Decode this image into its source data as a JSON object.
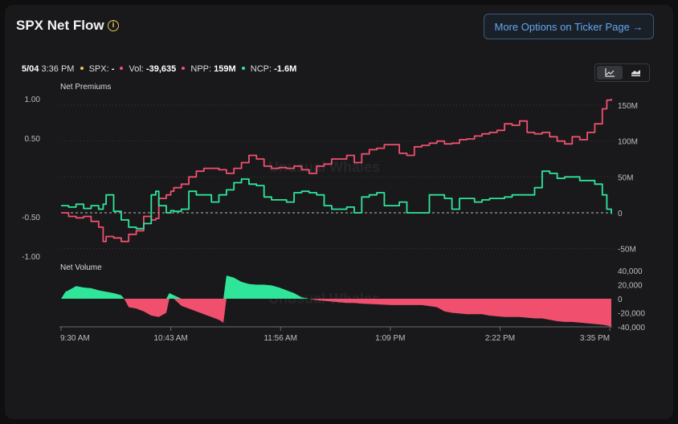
{
  "header": {
    "title": "SPX Net Flow",
    "info_icon": "info-circle-icon",
    "more_button": "More Options on Ticker Page",
    "more_button_icon": "arrow-right-icon"
  },
  "legend": {
    "date": "5/04",
    "time": "3:36 PM",
    "spx_label": "SPX:",
    "spx_value": "-",
    "vol_label": "Vol:",
    "vol_value": "-39,635",
    "npp_label": "NPP:",
    "npp_value": "159M",
    "ncp_label": "NCP:",
    "ncp_value": "-1.6M",
    "colors": {
      "spx": "#e8c55a",
      "vol": "#f0506e",
      "npp": "#f0506e",
      "ncp": "#2fe59a"
    }
  },
  "toggle": {
    "line_icon": "line-chart-icon",
    "area_icon": "area-chart-icon",
    "active": "line"
  },
  "watermark": "Unusual Whales",
  "chart_data": [
    {
      "type": "line",
      "title": "Net Premiums",
      "x_ticks": [
        "9:30 AM",
        "10:43 AM",
        "11:56 AM",
        "1:09 PM",
        "2:22 PM",
        "3:35 PM"
      ],
      "left_y_ticks": [
        "1.00",
        "0.50",
        "-0.50",
        "-1.00"
      ],
      "right_y_ticks": [
        "150M",
        "100M",
        "50M",
        "0",
        "-50M"
      ],
      "right_ylim": [
        -55,
        165
      ],
      "x_minutes_range": [
        0,
        366
      ],
      "zero_line": "dashed",
      "grid": "horizontal-dotted",
      "series": [
        {
          "name": "NPP",
          "color": "#f0506e",
          "x_minutes": [
            0,
            5,
            10,
            15,
            20,
            25,
            28,
            30,
            35,
            40,
            45,
            50,
            55,
            60,
            63,
            65,
            70,
            73,
            75,
            80,
            85,
            90,
            95,
            100,
            105,
            110,
            115,
            120,
            125,
            130,
            135,
            140,
            145,
            150,
            155,
            160,
            165,
            170,
            175,
            180,
            185,
            190,
            195,
            200,
            205,
            210,
            215,
            220,
            225,
            230,
            235,
            240,
            245,
            250,
            255,
            260,
            265,
            270,
            275,
            280,
            285,
            290,
            295,
            300,
            305,
            310,
            315,
            320,
            325,
            330,
            335,
            340,
            345,
            350,
            355,
            360,
            363,
            366
          ],
          "values": [
            0,
            -5,
            -7,
            -5,
            -12,
            -20,
            -40,
            -33,
            -35,
            -40,
            -30,
            -25,
            -5,
            -10,
            -8,
            20,
            25,
            30,
            35,
            40,
            50,
            58,
            62,
            62,
            60,
            55,
            62,
            70,
            80,
            75,
            65,
            62,
            63,
            62,
            65,
            60,
            55,
            65,
            68,
            75,
            75,
            80,
            70,
            82,
            88,
            90,
            95,
            95,
            83,
            80,
            92,
            94,
            97,
            100,
            96,
            97,
            102,
            103,
            107,
            110,
            112,
            115,
            124,
            122,
            128,
            112,
            110,
            112,
            106,
            100,
            96,
            106,
            102,
            112,
            124,
            145,
            157,
            159
          ]
        },
        {
          "name": "NCP",
          "color": "#2fe59a",
          "x_minutes": [
            0,
            5,
            10,
            15,
            20,
            25,
            28,
            30,
            35,
            40,
            45,
            50,
            55,
            60,
            63,
            65,
            70,
            73,
            75,
            80,
            85,
            90,
            95,
            100,
            105,
            110,
            115,
            120,
            125,
            130,
            135,
            140,
            145,
            150,
            155,
            160,
            165,
            170,
            175,
            180,
            185,
            190,
            195,
            200,
            205,
            210,
            215,
            220,
            225,
            230,
            235,
            240,
            245,
            250,
            255,
            260,
            265,
            270,
            275,
            280,
            285,
            290,
            295,
            300,
            305,
            310,
            315,
            320,
            325,
            330,
            335,
            340,
            345,
            350,
            355,
            360,
            363,
            366
          ],
          "values": [
            10,
            8,
            12,
            6,
            10,
            5,
            12,
            25,
            2,
            -10,
            -20,
            -22,
            -15,
            25,
            30,
            10,
            0,
            3,
            2,
            5,
            30,
            25,
            25,
            15,
            25,
            32,
            42,
            47,
            40,
            38,
            22,
            18,
            18,
            15,
            28,
            30,
            28,
            25,
            10,
            5,
            5,
            8,
            0,
            22,
            25,
            28,
            10,
            10,
            15,
            0,
            0,
            0,
            25,
            25,
            20,
            5,
            20,
            20,
            15,
            18,
            20,
            20,
            22,
            25,
            25,
            25,
            35,
            58,
            55,
            48,
            50,
            50,
            45,
            45,
            40,
            25,
            5,
            -1.6
          ]
        }
      ]
    },
    {
      "type": "area",
      "title": "Net Volume",
      "x_ticks": [
        "9:30 AM",
        "10:43 AM",
        "11:56 AM",
        "1:09 PM",
        "2:22 PM",
        "3:35 PM"
      ],
      "right_y_ticks": [
        "40,000",
        "20,000",
        "0",
        "-20,000",
        "-40,000"
      ],
      "right_ylim": [
        -41000,
        43000
      ],
      "x_minutes_range": [
        0,
        366
      ],
      "series": [
        {
          "name": "Vol",
          "positive_color": "#2fe59a",
          "negative_color": "#f0506e",
          "x_minutes": [
            0,
            3,
            5,
            10,
            15,
            20,
            25,
            30,
            35,
            40,
            42,
            45,
            50,
            55,
            60,
            65,
            70,
            72,
            75,
            80,
            85,
            90,
            95,
            100,
            105,
            108,
            110,
            115,
            120,
            125,
            130,
            135,
            140,
            145,
            150,
            155,
            160,
            165,
            170,
            175,
            180,
            185,
            190,
            195,
            200,
            210,
            220,
            230,
            240,
            250,
            255,
            260,
            265,
            270,
            275,
            280,
            285,
            290,
            295,
            300,
            305,
            310,
            315,
            320,
            325,
            330,
            335,
            340,
            345,
            350,
            355,
            360,
            363,
            366
          ],
          "values": [
            0,
            10000,
            12000,
            18000,
            16000,
            15000,
            12000,
            10000,
            8000,
            5000,
            0,
            -12000,
            -14000,
            -18000,
            -24000,
            -26000,
            -20000,
            8000,
            5000,
            -10000,
            -14000,
            -18000,
            -22000,
            -26000,
            -30000,
            -34000,
            33000,
            30000,
            24000,
            21000,
            20000,
            20000,
            19000,
            16000,
            12000,
            8000,
            2000,
            0,
            -2000,
            -3000,
            -4000,
            -5000,
            -6000,
            -6000,
            -7000,
            -8000,
            -9000,
            -9000,
            -9000,
            -12000,
            -18000,
            -20000,
            -21000,
            -22000,
            -22000,
            -22000,
            -24000,
            -25000,
            -26000,
            -26000,
            -26000,
            -27000,
            -28000,
            -28000,
            -30000,
            -32000,
            -33000,
            -33000,
            -34000,
            -35000,
            -36000,
            -37000,
            -38000,
            -39635
          ]
        }
      ]
    }
  ]
}
